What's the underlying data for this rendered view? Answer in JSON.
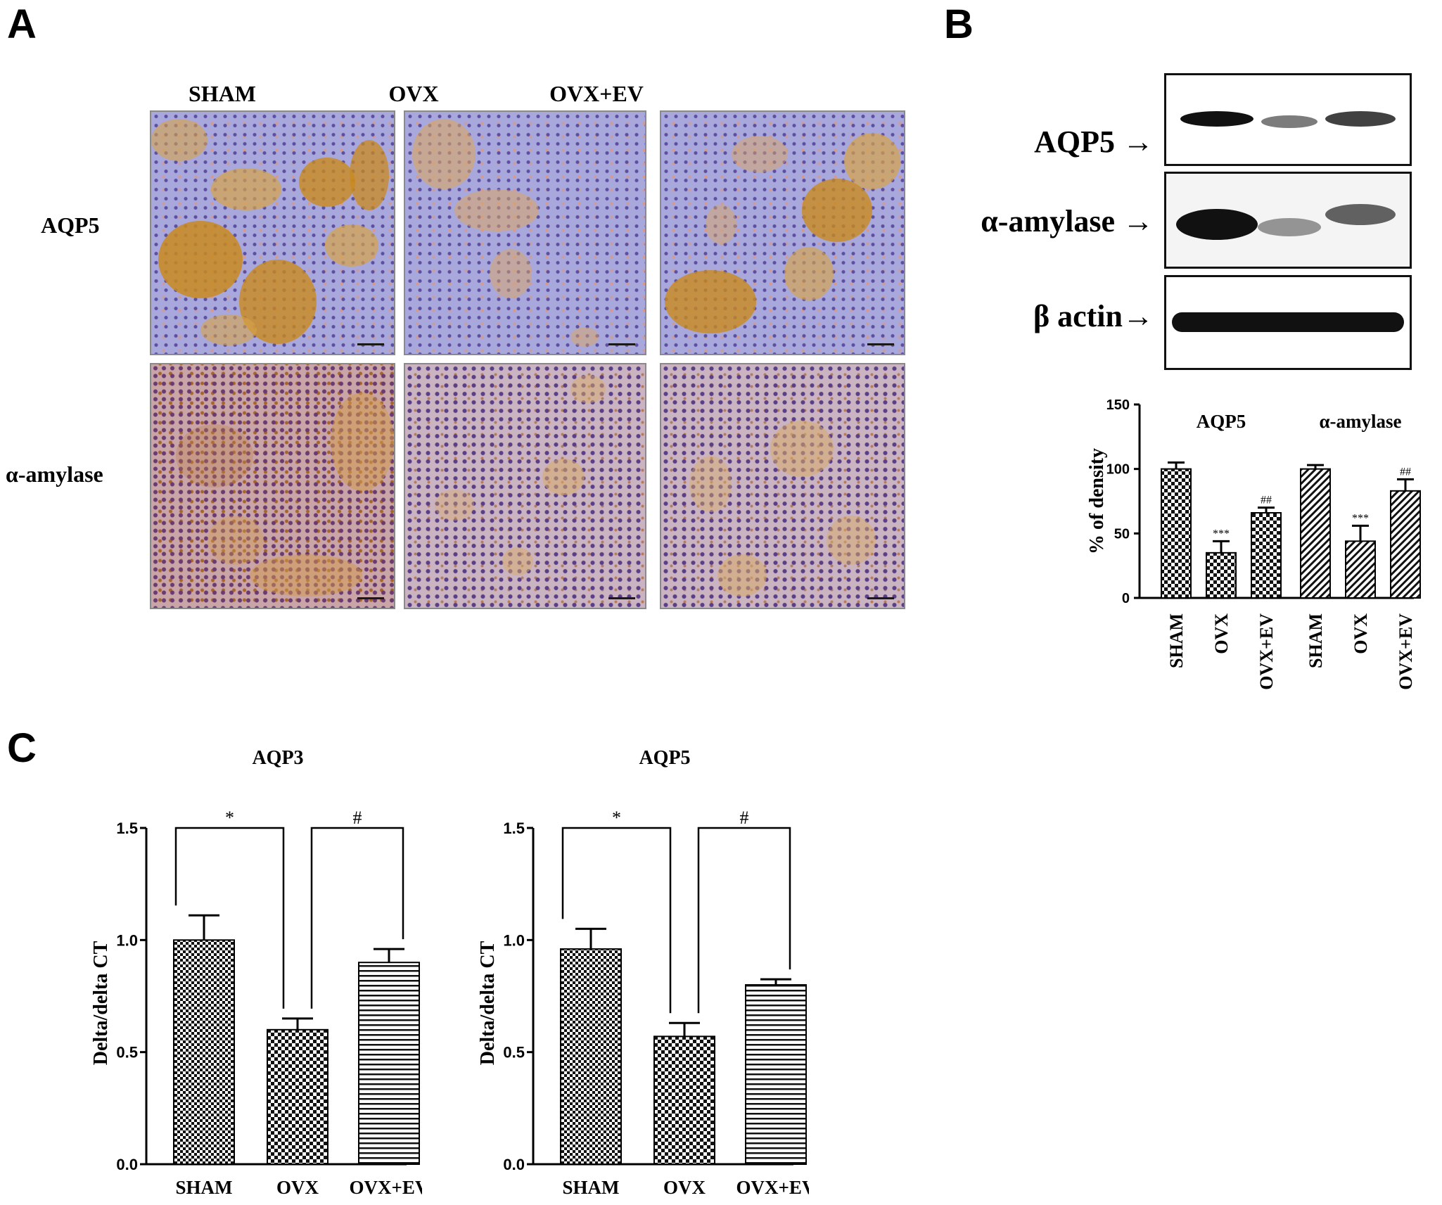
{
  "panel_letters": {
    "a": "A",
    "b": "B",
    "c": "C"
  },
  "ihc": {
    "column_labels": [
      "SHAM",
      "OVX",
      "OVX+EV"
    ],
    "row_labels": [
      "AQP5",
      "α-amylase"
    ]
  },
  "western": {
    "blots": [
      {
        "label": "AQP5 →",
        "band_intensity": [
          0.95,
          0.55,
          0.8
        ]
      },
      {
        "label": "α-amylase →",
        "band_intensity": [
          1.0,
          0.45,
          0.7
        ]
      },
      {
        "label": "β actin→",
        "band_intensity": [
          1.0,
          1.0,
          1.0
        ]
      }
    ]
  },
  "chart_data": [
    {
      "id": "density",
      "type": "bar",
      "title": "",
      "xlabel": "",
      "ylabel": "% of density",
      "ylim": [
        0,
        150
      ],
      "yticks": [
        0,
        50,
        100,
        150
      ],
      "grid": false,
      "groups": [
        "AQP5",
        "α-amylase"
      ],
      "categories": [
        "SHAM",
        "OVX",
        "OVX+EV",
        "SHAM",
        "OVX",
        "OVX+EV"
      ],
      "values": [
        100,
        35,
        66,
        100,
        44,
        83
      ],
      "errors": [
        5,
        9,
        4,
        3,
        12,
        9
      ],
      "group_of_bar": [
        0,
        0,
        0,
        1,
        1,
        1
      ],
      "bar_patterns": [
        "checker",
        "checker",
        "checker",
        "diag",
        "diag",
        "diag"
      ],
      "annotations": [
        "",
        "***",
        "##",
        "",
        "***",
        "##"
      ]
    },
    {
      "id": "aqp3",
      "type": "bar",
      "title": "AQP3",
      "xlabel": "",
      "ylabel": "Delta/delta CT",
      "ylim": [
        0,
        1.5
      ],
      "yticks": [
        "0.0",
        "0.5",
        "1.0",
        "1.5"
      ],
      "grid": false,
      "categories": [
        "SHAM",
        "OVX",
        "OVX+EV"
      ],
      "values": [
        1.0,
        0.6,
        0.9
      ],
      "errors": [
        0.11,
        0.05,
        0.06
      ],
      "bar_patterns": [
        "checker-fine",
        "checker-coarse",
        "horizontal"
      ],
      "significance": [
        {
          "from": 0,
          "to": 1,
          "label": "*"
        },
        {
          "from": 1,
          "to": 2,
          "label": "#"
        }
      ]
    },
    {
      "id": "aqp5",
      "type": "bar",
      "title": "AQP5",
      "xlabel": "",
      "ylabel": "Delta/delta CT",
      "ylim": [
        0,
        1.5
      ],
      "yticks": [
        "0.0",
        "0.5",
        "1.0",
        "1.5"
      ],
      "grid": false,
      "categories": [
        "SHAM",
        "OVX",
        "OVX+EV"
      ],
      "values": [
        0.96,
        0.57,
        0.8
      ],
      "errors": [
        0.09,
        0.06,
        0.025
      ],
      "bar_patterns": [
        "checker-fine",
        "checker-coarse",
        "horizontal"
      ],
      "significance": [
        {
          "from": 0,
          "to": 1,
          "label": "*"
        },
        {
          "from": 1,
          "to": 2,
          "label": "#"
        }
      ]
    }
  ]
}
